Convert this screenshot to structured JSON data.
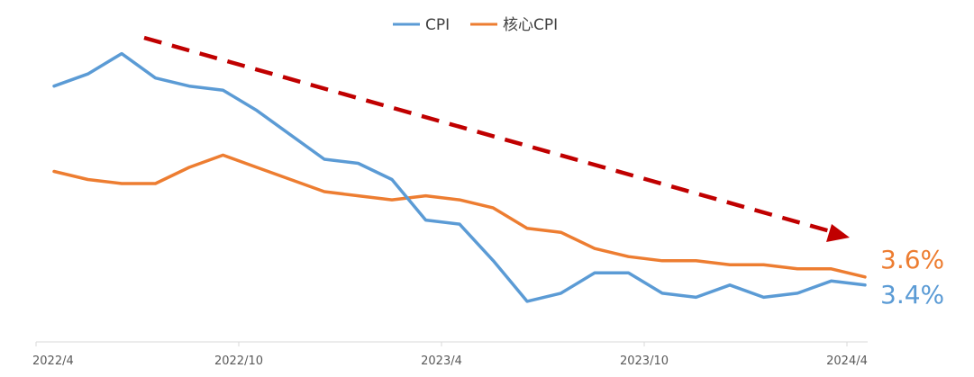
{
  "chart_data": {
    "type": "line",
    "title": "",
    "xlabel": "",
    "ylabel": "",
    "x": [
      "2022/4",
      "2022/5",
      "2022/6",
      "2022/7",
      "2022/8",
      "2022/9",
      "2022/10",
      "2022/11",
      "2022/12",
      "2023/1",
      "2023/2",
      "2023/3",
      "2023/4",
      "2023/5",
      "2023/6",
      "2023/7",
      "2023/8",
      "2023/9",
      "2023/10",
      "2023/11",
      "2023/12",
      "2024/1",
      "2024/2",
      "2024/3",
      "2024/4"
    ],
    "x_tick_labels": [
      "2022/4",
      "2022/10",
      "2023/4",
      "2023/10",
      "2024/4"
    ],
    "series": [
      {
        "name": "CPI",
        "color": "#5b9bd5",
        "values": [
          8.3,
          8.6,
          9.1,
          8.5,
          8.3,
          8.2,
          7.7,
          7.1,
          6.5,
          6.4,
          6.0,
          5.0,
          4.9,
          4.0,
          3.0,
          3.2,
          3.7,
          3.7,
          3.2,
          3.1,
          3.4,
          3.1,
          3.2,
          3.5,
          3.4
        ],
        "end_label": "3.4%"
      },
      {
        "name": "核心CPI",
        "color": "#ed7d31",
        "values": [
          6.2,
          6.0,
          5.9,
          5.9,
          6.3,
          6.6,
          6.3,
          6.0,
          5.7,
          5.6,
          5.5,
          5.6,
          5.5,
          5.3,
          4.8,
          4.7,
          4.3,
          4.1,
          4.0,
          4.0,
          3.9,
          3.9,
          3.8,
          3.8,
          3.6
        ],
        "end_label": "3.6%"
      }
    ],
    "ylim": [
      2.0,
      10.2
    ],
    "grid": false,
    "legend": "top-center",
    "annotation": {
      "type": "dashed-arrow",
      "color": "#c00000",
      "direction": "down-right"
    }
  }
}
